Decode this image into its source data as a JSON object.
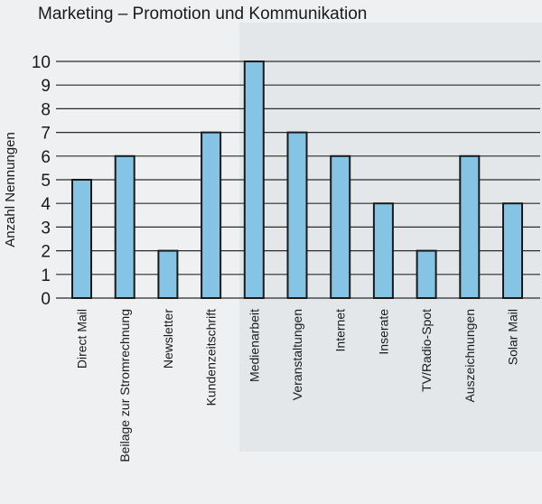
{
  "chart_data": {
    "type": "bar",
    "title": "Marketing – Promotion und Kommunikation",
    "ylabel": "Anzahl Nennungen",
    "xlabel": "",
    "ylim": [
      0,
      10
    ],
    "yticks": [
      0,
      1,
      2,
      3,
      4,
      5,
      6,
      7,
      8,
      9,
      10
    ],
    "grid": true,
    "categories": [
      "Direct Mail",
      "Beilage zur Stromrechnung",
      "Newsletter",
      "Kundenzeitschrift",
      "Medienarbeit",
      "Veranstaltungen",
      "Internet",
      "Inserate",
      "TV/Radio-Spot",
      "Auszeichnungen",
      "Solar Mail"
    ],
    "values": [
      5,
      6,
      2,
      7,
      10,
      7,
      6,
      4,
      2,
      6,
      4
    ],
    "colors": {
      "bar_fill": "#86c4e6",
      "bar_stroke": "#1a1a1a",
      "grid": "#2b2b2b"
    }
  }
}
